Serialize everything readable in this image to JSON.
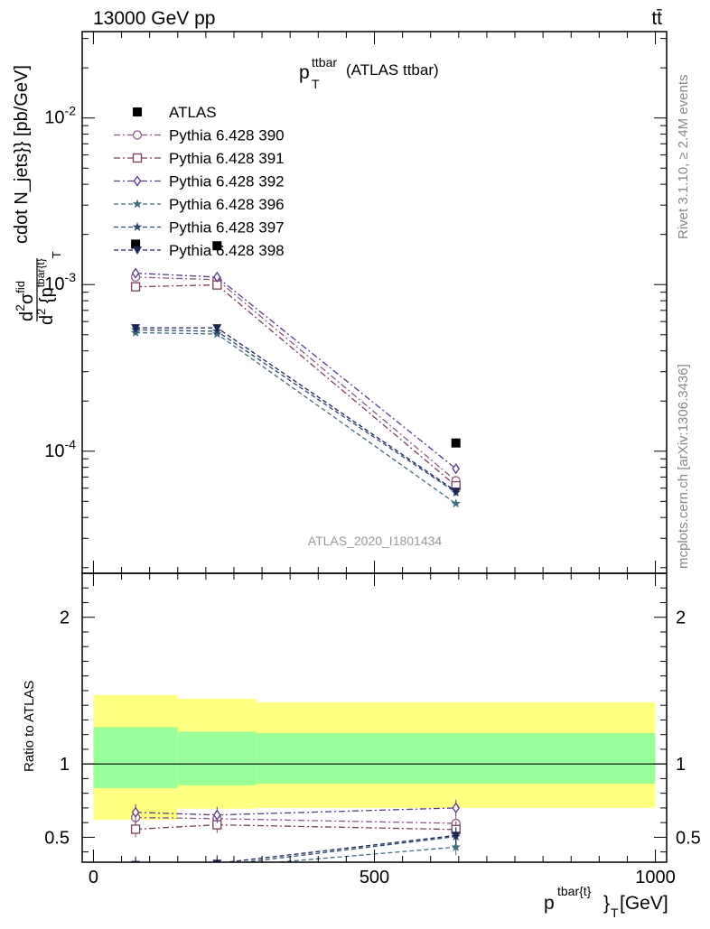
{
  "header": {
    "energy_label": "13000 GeV pp",
    "process_label": "tt̄"
  },
  "side_labels": {
    "rivet": "Rivet 3.1.10, ≥ 2.4M events",
    "mcplots": "mcplots.cern.ch [arXiv:1306.3436]"
  },
  "chart_data": {
    "type": "line",
    "title": "p_T^{ttbar} (ATLAS ttbar)",
    "title_main": "p",
    "title_sup": "ttbar",
    "title_sub": "T",
    "title_rest": "(ATLAS ttbar)",
    "watermark": "ATLAS_2020_I1801434",
    "ylabel": "d²σ^{fid}/d² {p^{tbar{t}}_T cdot N_jets}} [pb/GeV]",
    "ylabel_suffix": "cdot N_jets}} [pb/GeV]",
    "xlabel": "p^{tbar{t}}_T [GeV]",
    "xlabel_main": "p",
    "xlabel_sup": "tbar{t}",
    "xlabel_tail": "}",
    "xlabel_sub": "T",
    "xlabel_unit": "[GeV]",
    "xlim": [
      -20,
      1020
    ],
    "x_ticks": [
      0,
      500,
      1000
    ],
    "x_tick_labels": [
      "0",
      "500",
      "1000"
    ],
    "main": {
      "yscale": "log",
      "ylim": [
        1.85e-05,
        0.033
      ],
      "y_ticks": [
        0.0001,
        0.001,
        0.01
      ],
      "y_tick_labels": [
        [
          "10",
          "-4"
        ],
        [
          "10",
          "-3"
        ],
        [
          "10",
          "-2"
        ]
      ],
      "legend_position": "top-left"
    },
    "ratio": {
      "ylabel": "Ratio to ATLAS",
      "ylim": [
        0.33,
        2.3
      ],
      "y_ticks": [
        0.5,
        1,
        2
      ],
      "y_tick_labels": [
        "0.5",
        "1",
        "2"
      ],
      "bins": [
        [
          0,
          150
        ],
        [
          150,
          290
        ],
        [
          290,
          1000
        ]
      ],
      "band_inner": [
        [
          0.835,
          1.25
        ],
        [
          0.855,
          1.22
        ],
        [
          0.865,
          1.21
        ]
      ],
      "band_outer": [
        [
          0.62,
          1.47
        ],
        [
          0.695,
          1.445
        ],
        [
          0.7,
          1.42
        ]
      ]
    },
    "x": [
      75,
      220,
      645
    ],
    "reference": {
      "name": "ATLAS",
      "values": [
        0.00175,
        0.00171,
        0.000112
      ]
    },
    "series": [
      {
        "name": "Pythia 6.428 390",
        "color": "#8b5a86",
        "marker": "circle-open",
        "dash": "dashdot",
        "values": [
          0.00111,
          0.00107,
          6.65e-05
        ],
        "ratio": [
          0.635,
          0.627,
          0.595
        ]
      },
      {
        "name": "Pythia 6.428 391",
        "color": "#7a3f5e",
        "marker": "square-open",
        "dash": "dashdot",
        "values": [
          0.00097,
          0.000995,
          6.2e-05
        ],
        "ratio": [
          0.555,
          0.585,
          0.553
        ]
      },
      {
        "name": "Pythia 6.428 392",
        "color": "#5b3a85",
        "marker": "diamond-open",
        "dash": "dashdot",
        "values": [
          0.00117,
          0.00111,
          7.85e-05
        ],
        "ratio": [
          0.67,
          0.652,
          0.7
        ]
      },
      {
        "name": "Pythia 6.428 396",
        "color": "#436d7b",
        "marker": "star",
        "dash": "dashed",
        "values": [
          0.000515,
          0.000505,
          4.85e-05
        ],
        "ratio": [
          0.295,
          0.295,
          0.433
        ]
      },
      {
        "name": "Pythia 6.428 397",
        "color": "#2f4a6e",
        "marker": "star",
        "dash": "dashed",
        "values": [
          0.000535,
          0.000525,
          5.65e-05
        ],
        "ratio": [
          0.305,
          0.307,
          0.505
        ]
      },
      {
        "name": "Pythia 6.428 398",
        "color": "#1d2551",
        "marker": "triangle-down",
        "dash": "dashed",
        "values": [
          0.00055,
          0.00055,
          5.75e-05
        ],
        "ratio": [
          0.314,
          0.322,
          0.513
        ]
      }
    ]
  }
}
